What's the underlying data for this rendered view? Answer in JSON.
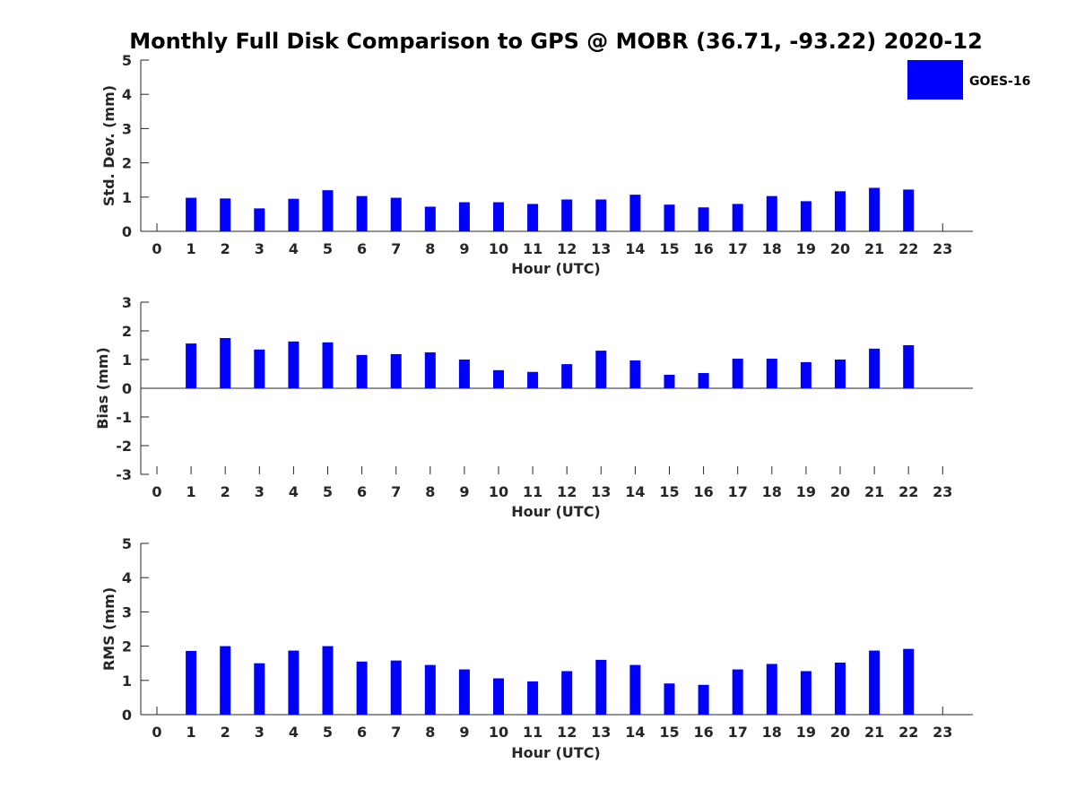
{
  "chart_data": {
    "type": "bar",
    "title": "Monthly Full Disk Comparison to GPS @ MOBR (36.71, -93.22) 2020-12",
    "legend": {
      "label": "GOES-16",
      "color": "#0000ff",
      "position": "top-right"
    },
    "categories": [
      "0",
      "1",
      "2",
      "3",
      "4",
      "5",
      "6",
      "7",
      "8",
      "9",
      "10",
      "11",
      "12",
      "13",
      "14",
      "15",
      "16",
      "17",
      "18",
      "19",
      "20",
      "21",
      "22",
      "23"
    ],
    "panels": [
      {
        "ylabel": "Std. Dev. (mm)",
        "xlabel": "Hour (UTC)",
        "ylim": [
          0,
          5
        ],
        "yticks": [
          "0",
          "1",
          "2",
          "3",
          "4",
          "5"
        ],
        "series": [
          {
            "name": "GOES-16",
            "values": [
              null,
              0.98,
              0.96,
              0.67,
              0.95,
              1.2,
              1.03,
              0.98,
              0.72,
              0.85,
              0.85,
              0.8,
              0.93,
              0.93,
              1.07,
              0.78,
              0.7,
              0.8,
              1.03,
              0.88,
              1.17,
              1.27,
              1.22,
              null
            ]
          }
        ]
      },
      {
        "ylabel": "Bias (mm)",
        "xlabel": "Hour (UTC)",
        "ylim": [
          -3,
          3
        ],
        "yticks": [
          "-3",
          "-2",
          "-1",
          "0",
          "1",
          "2",
          "3"
        ],
        "series": [
          {
            "name": "GOES-16",
            "values": [
              null,
              1.56,
              1.75,
              1.35,
              1.63,
              1.6,
              1.16,
              1.19,
              1.25,
              1.0,
              0.63,
              0.57,
              0.84,
              1.31,
              0.97,
              0.47,
              0.53,
              1.03,
              1.03,
              0.91,
              1.0,
              1.38,
              1.5,
              null
            ]
          }
        ]
      },
      {
        "ylabel": "RMS (mm)",
        "xlabel": "Hour (UTC)",
        "ylim": [
          0,
          5
        ],
        "yticks": [
          "0",
          "1",
          "2",
          "3",
          "4",
          "5"
        ],
        "series": [
          {
            "name": "GOES-16",
            "values": [
              null,
              1.86,
              2.0,
              1.5,
              1.87,
              2.0,
              1.55,
              1.58,
              1.45,
              1.32,
              1.06,
              0.97,
              1.27,
              1.6,
              1.45,
              0.91,
              0.87,
              1.32,
              1.48,
              1.27,
              1.52,
              1.87,
              1.92,
              null
            ]
          }
        ]
      }
    ]
  }
}
